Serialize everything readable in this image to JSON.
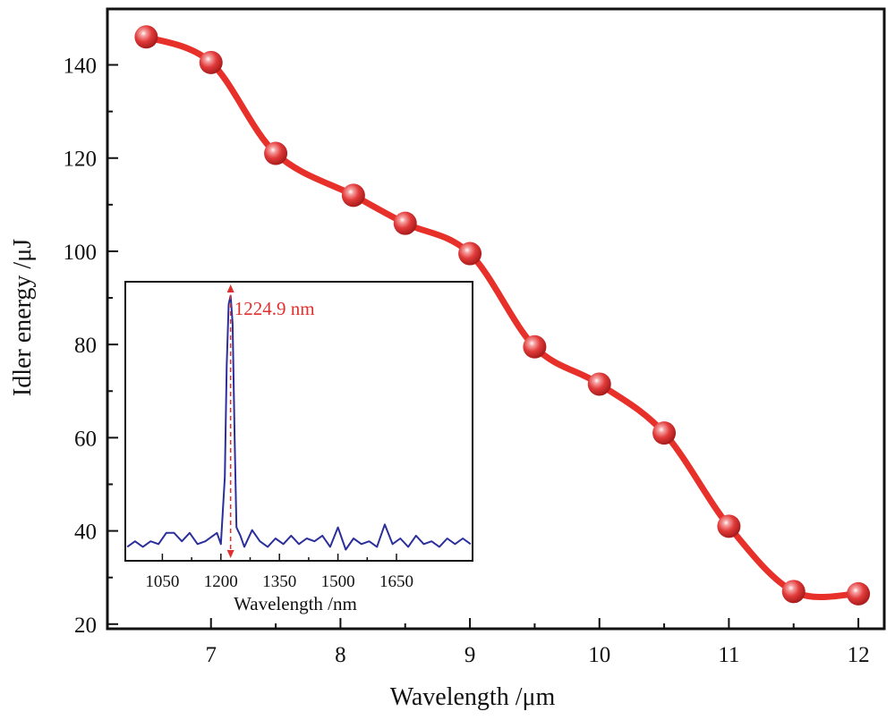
{
  "colors": {
    "main_series": "#e8302a",
    "marker_fill": "#e23a3a",
    "inset_series": "#2b2f9a",
    "annotation": "#e03030",
    "axes": "#111111"
  },
  "chart_data": [
    {
      "type": "line",
      "xlabel": "Wavelength /μm",
      "ylabel": "Idler energy /μJ",
      "xlim": [
        6.2,
        12.2
      ],
      "ylim": [
        19,
        152
      ],
      "xticks": [
        7,
        8,
        9,
        10,
        11,
        12
      ],
      "yticks": [
        20,
        40,
        60,
        80,
        100,
        120,
        140
      ],
      "grid": false,
      "markers": "sphere",
      "series": [
        {
          "x": [
            6.5,
            7.0,
            7.5,
            8.1,
            8.5,
            9.0,
            9.5,
            10.0,
            10.5,
            11.0,
            11.5,
            12.0
          ],
          "y": [
            146,
            140.5,
            121,
            112,
            106,
            99.5,
            79.5,
            71.5,
            61,
            41,
            27,
            26.5
          ]
        }
      ]
    },
    {
      "type": "line",
      "role": "inset",
      "xlabel": "Wavelength /nm",
      "ylabel": "",
      "xlim": [
        955,
        1845
      ],
      "ylim": [
        0,
        1.0
      ],
      "xticks": [
        1050,
        1200,
        1350,
        1500,
        1650
      ],
      "yticks": [],
      "grid": false,
      "annotation": {
        "text": "1224.9 nm",
        "x": 1224.9
      },
      "series": [
        {
          "x": [
            960,
            980,
            1000,
            1020,
            1040,
            1060,
            1080,
            1100,
            1120,
            1140,
            1160,
            1180,
            1190,
            1200,
            1210,
            1215,
            1220,
            1224.9,
            1230,
            1235,
            1240,
            1250,
            1260,
            1280,
            1300,
            1320,
            1340,
            1360,
            1380,
            1400,
            1420,
            1440,
            1460,
            1480,
            1500,
            1520,
            1540,
            1560,
            1580,
            1600,
            1620,
            1640,
            1660,
            1680,
            1700,
            1720,
            1740,
            1760,
            1780,
            1800,
            1820,
            1840
          ],
          "y": [
            0.05,
            0.07,
            0.05,
            0.07,
            0.06,
            0.1,
            0.1,
            0.07,
            0.1,
            0.06,
            0.07,
            0.09,
            0.1,
            0.06,
            0.3,
            0.7,
            0.92,
            0.95,
            0.85,
            0.45,
            0.12,
            0.09,
            0.05,
            0.11,
            0.07,
            0.05,
            0.08,
            0.06,
            0.09,
            0.06,
            0.08,
            0.07,
            0.09,
            0.05,
            0.12,
            0.04,
            0.08,
            0.06,
            0.07,
            0.05,
            0.13,
            0.06,
            0.08,
            0.05,
            0.09,
            0.06,
            0.07,
            0.05,
            0.08,
            0.06,
            0.08,
            0.06
          ]
        }
      ]
    }
  ]
}
